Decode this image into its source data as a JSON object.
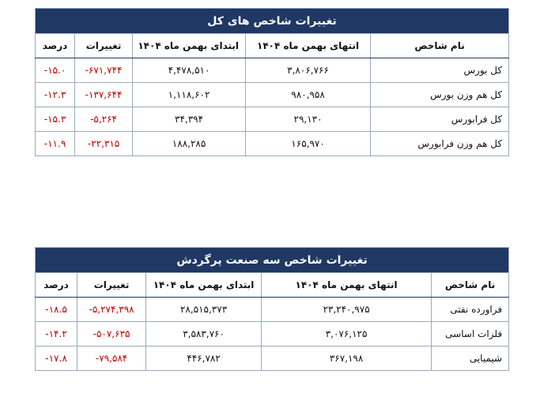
{
  "tables": [
    {
      "title": "تغییرات شاخص های کل",
      "headers": [
        "نام شاخص",
        "انتهای بهمن ماه ۱۴۰۴",
        "ابتدای بهمن ماه ۱۴۰۴",
        "تغییرات",
        "درصد"
      ],
      "rows": [
        [
          "کل بورس",
          "۳,۸۰۶,۷۶۶",
          "۴,۴۷۸,۵۱۰",
          "-۶۷۱,۷۴۴",
          "-۱۵.۰"
        ],
        [
          "کل هم وزن بورس",
          "۹۸۰,۹۵۸",
          "۱,۱۱۸,۶۰۲",
          "-۱۳۷,۶۴۴",
          "-۱۲.۳"
        ],
        [
          "کل فرابورس",
          "۲۹,۱۳۰",
          "۳۴,۳۹۴",
          "-۵,۲۶۴",
          "-۱۵.۳"
        ],
        [
          "کل هم وزن فرابورس",
          "۱۶۵,۹۷۰",
          "۱۸۸,۲۸۵",
          "-۲۲,۳۱۵",
          "-۱۱.۹"
        ]
      ]
    },
    {
      "title": "تغییرات شاخص سه صنعت پرگردش",
      "headers": [
        "نام شاخص",
        "انتهای بهمن ماه ۱۴۰۴",
        "ابتدای بهمن ماه ۱۴۰۴",
        "تغییرات",
        "درصد"
      ],
      "rows": [
        [
          "فراورده نفتی",
          "۲۳,۲۴۰,۹۷۵",
          "۲۸,۵۱۵,۳۷۳",
          "-۵,۲۷۴,۳۹۸",
          "-۱۸.۵"
        ],
        [
          "فلزات اساسی",
          "۳,۰۷۶,۱۲۵",
          "۳,۵۸۳,۷۶۰",
          "-۵۰۷,۶۳۵",
          "-۱۴.۲"
        ],
        [
          "شیمیایی",
          "۳۶۷,۱۹۸",
          "۴۴۶,۷۸۲",
          "-۷۹,۵۸۴",
          "-۱۷.۸"
        ]
      ]
    }
  ]
}
